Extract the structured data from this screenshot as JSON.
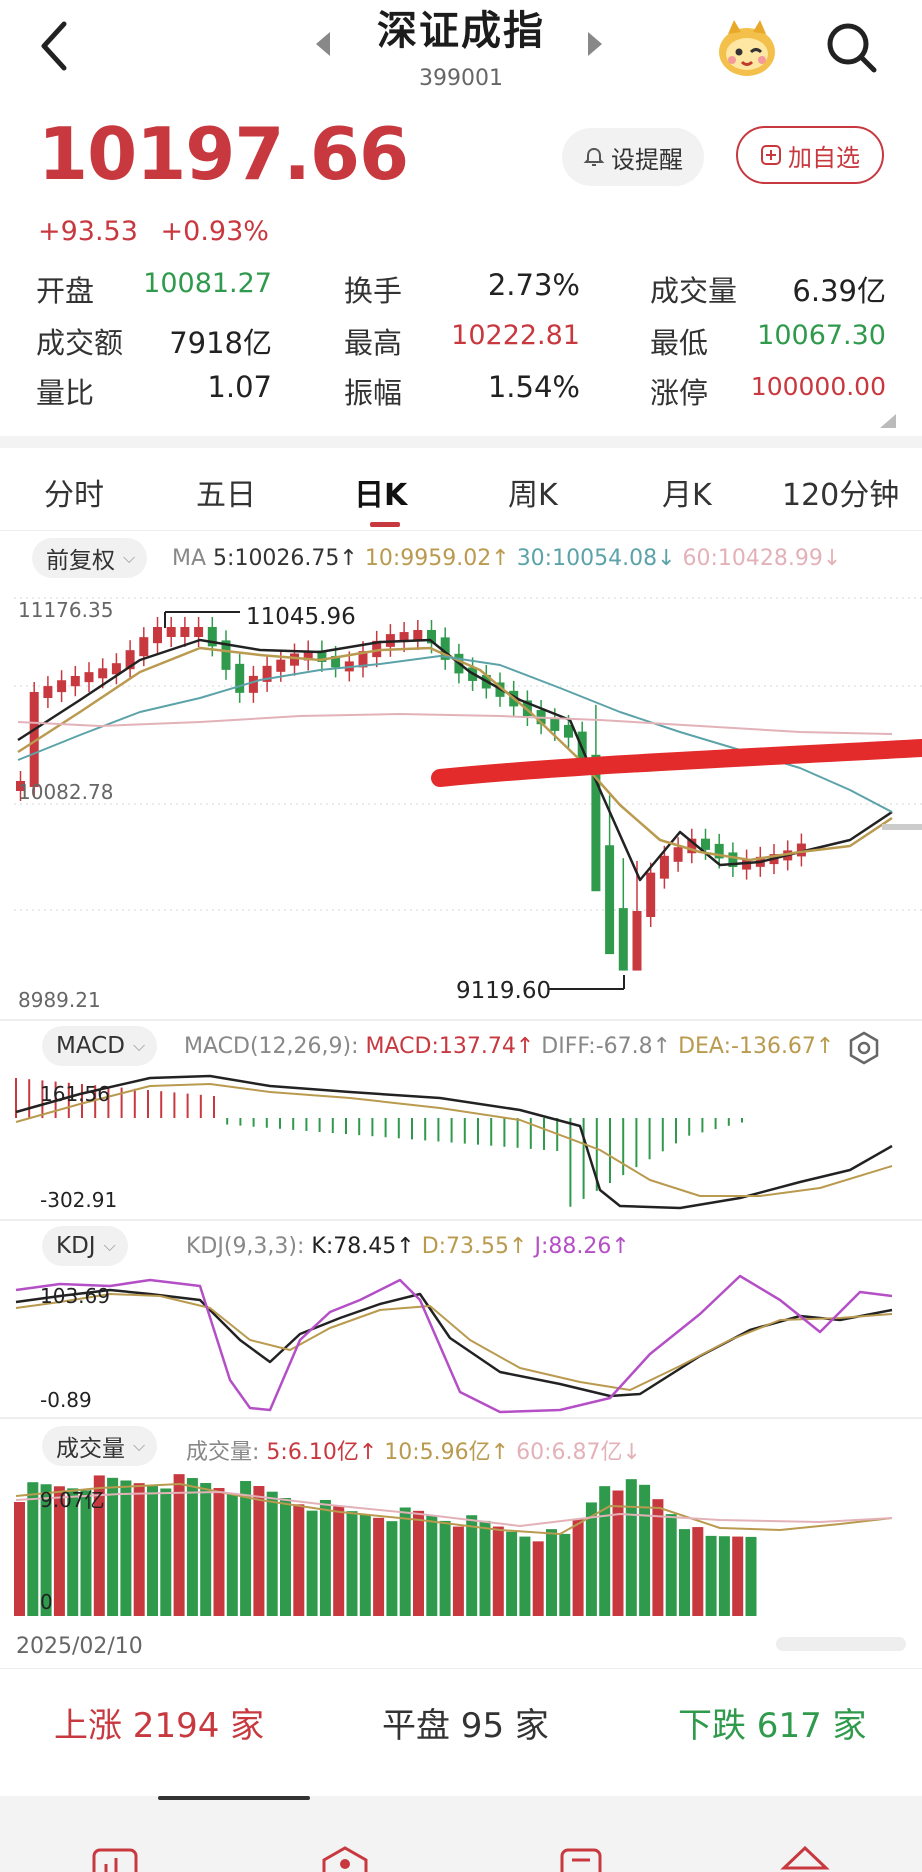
{
  "header": {
    "title": "深证成指",
    "code": "399001"
  },
  "quote": {
    "price": "10197.66",
    "change": "+93.53",
    "change_pct": "+0.93%",
    "alert_label": "设提醒",
    "watch_label": "加自选"
  },
  "stats": [
    {
      "label": "开盘",
      "value": "10081.27",
      "tone": "green"
    },
    {
      "label": "换手",
      "value": "2.73%",
      "tone": "plain"
    },
    {
      "label": "成交量",
      "value": "6.39亿",
      "tone": "plain"
    },
    {
      "label": "成交额",
      "value": "7918亿",
      "tone": "plain"
    },
    {
      "label": "最高",
      "value": "10222.81",
      "tone": "red"
    },
    {
      "label": "最低",
      "value": "10067.30",
      "tone": "green"
    },
    {
      "label": "量比",
      "value": "1.07",
      "tone": "plain"
    },
    {
      "label": "振幅",
      "value": "1.54%",
      "tone": "plain"
    },
    {
      "label": "涨停",
      "value": "100000.00",
      "tone": "red"
    }
  ],
  "tabs": [
    "分时",
    "五日",
    "日K",
    "周K",
    "月K",
    "120分钟"
  ],
  "kline": {
    "adjust_label": "前复权",
    "ma_prefix": "MA",
    "ma5": "5:10026.75↑",
    "ma10": "10:9959.02↑",
    "ma30": "30:10054.08↓",
    "ma60": "60:10428.99↓",
    "axis_top": "11176.35",
    "axis_mid": "10082.78",
    "axis_bottom": "8989.21",
    "high_label": "11045.96",
    "low_label": "9119.60"
  },
  "macd": {
    "chip_label": "MACD",
    "params": "MACD(12,26,9):",
    "macd": "MACD:137.74↑",
    "diff": "DIFF:-67.8↑",
    "dea": "DEA:-136.67↑",
    "axis_top": "161.56",
    "axis_bottom": "-302.91"
  },
  "kdj": {
    "chip_label": "KDJ",
    "params": "KDJ(9,3,3):",
    "k": "K:78.45↑",
    "d": "D:73.55↑",
    "j": "J:88.26↑",
    "axis_top": "103.69",
    "axis_bottom": "-0.89"
  },
  "volume": {
    "chip_label": "成交量",
    "prefix": "成交量:",
    "v5": "5:6.10亿↑",
    "v10": "10:5.96亿↑",
    "v60": "60:6.87亿↓",
    "axis_top": "9.07亿",
    "axis_bottom": "0",
    "date_label": "2025/02/10"
  },
  "summary": {
    "up": "上涨 2194 家",
    "flat": "平盘 95 家",
    "down": "下跌 617 家"
  },
  "colors": {
    "up": "#c8383f",
    "down": "#2f9a4c",
    "ma5": "#222222",
    "ma10": "#b99a4e",
    "ma30": "#5ba3a8",
    "ma60": "#e3b2b9",
    "j": "#b44fc6"
  }
}
